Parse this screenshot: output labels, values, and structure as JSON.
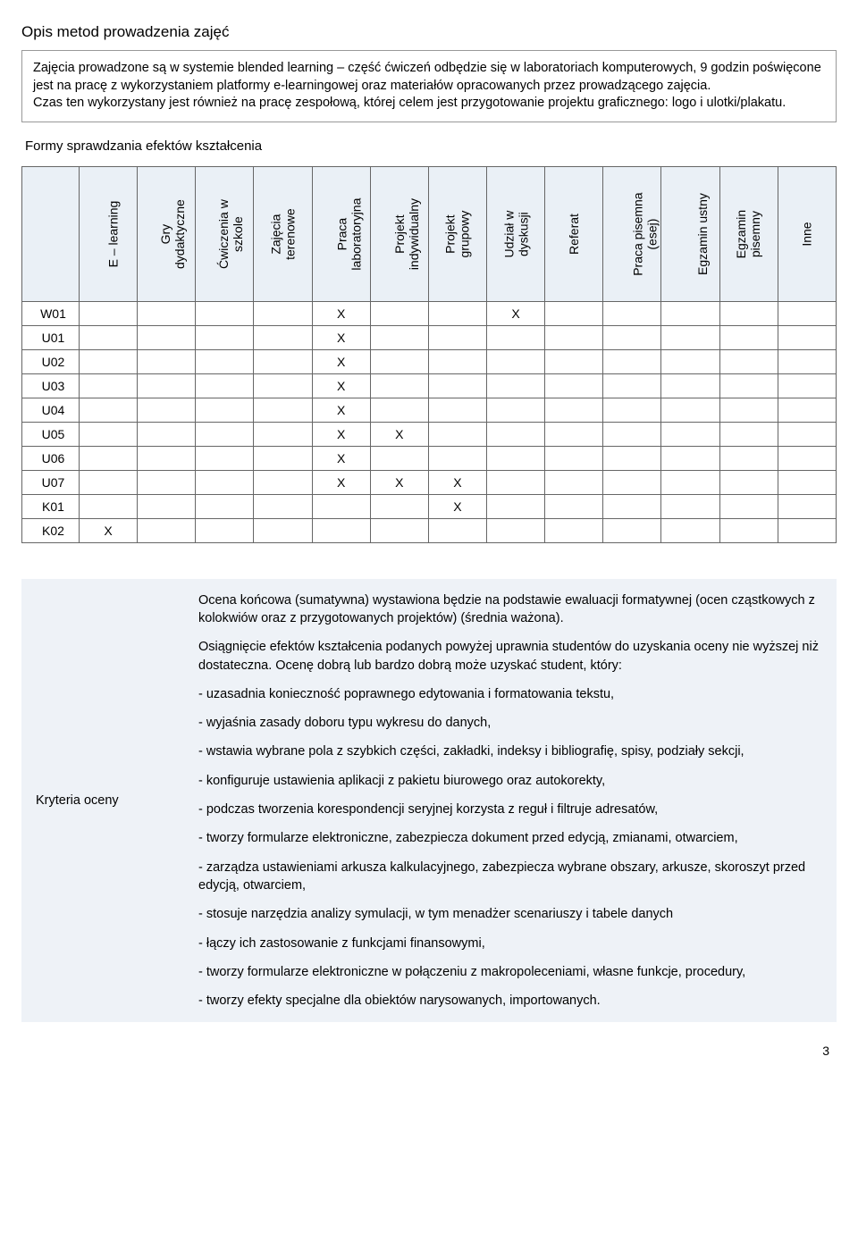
{
  "section1": {
    "title": "Opis metod prowadzenia zajęć",
    "body": "Zajęcia prowadzone są w systemie blended learning – część ćwiczeń odbędzie się w laboratoriach komputerowych, 9 godzin poświęcone jest na pracę z wykorzystaniem platformy e-learningowej oraz materiałów opracowanych przez prowadzącego zajęcia.\nCzas ten wykorzystany jest również na pracę zespołową, której celem jest przygotowanie projektu graficznego: logo i ulotki/plakatu."
  },
  "section2": {
    "title": "Formy sprawdzania efektów kształcenia",
    "columns": [
      "E – learning",
      "Gry\ndydaktyczne",
      "Ćwiczenia w\nszkole",
      "Zajęcia\nterenowe",
      "Praca\nlaboratoryjna",
      "Projekt\nindywidualny",
      "Projekt\ngrupowy",
      "Udział w\ndyskusji",
      "Referat",
      "Praca pisemna\n(esej)",
      "Egzamin ustny",
      "Egzamin\npisemny",
      "Inne"
    ],
    "rows": [
      {
        "label": "W01",
        "marks": [
          "",
          "",
          "",
          "",
          "X",
          "",
          "",
          "X",
          "",
          "",
          "",
          "",
          ""
        ]
      },
      {
        "label": "U01",
        "marks": [
          "",
          "",
          "",
          "",
          "X",
          "",
          "",
          "",
          "",
          "",
          "",
          "",
          ""
        ]
      },
      {
        "label": "U02",
        "marks": [
          "",
          "",
          "",
          "",
          "X",
          "",
          "",
          "",
          "",
          "",
          "",
          "",
          ""
        ]
      },
      {
        "label": "U03",
        "marks": [
          "",
          "",
          "",
          "",
          "X",
          "",
          "",
          "",
          "",
          "",
          "",
          "",
          ""
        ]
      },
      {
        "label": "U04",
        "marks": [
          "",
          "",
          "",
          "",
          "X",
          "",
          "",
          "",
          "",
          "",
          "",
          "",
          ""
        ]
      },
      {
        "label": "U05",
        "marks": [
          "",
          "",
          "",
          "",
          "X",
          "X",
          "",
          "",
          "",
          "",
          "",
          "",
          ""
        ]
      },
      {
        "label": "U06",
        "marks": [
          "",
          "",
          "",
          "",
          "X",
          "",
          "",
          "",
          "",
          "",
          "",
          "",
          ""
        ]
      },
      {
        "label": "U07",
        "marks": [
          "",
          "",
          "",
          "",
          "X",
          "X",
          "X",
          "",
          "",
          "",
          "",
          "",
          ""
        ]
      },
      {
        "label": "K01",
        "marks": [
          "",
          "",
          "",
          "",
          "",
          "",
          "X",
          "",
          "",
          "",
          "",
          "",
          ""
        ]
      },
      {
        "label": "K02",
        "marks": [
          "X",
          "",
          "",
          "",
          "",
          "",
          "",
          "",
          "",
          "",
          "",
          "",
          ""
        ]
      }
    ]
  },
  "criteria": {
    "label": "Kryteria oceny",
    "paragraphs": [
      "Ocena końcowa (sumatywna) wystawiona będzie na podstawie ewaluacji formatywnej (ocen cząstkowych z kolokwiów oraz z przygotowanych projektów) (średnia ważona).",
      "Osiągnięcie efektów kształcenia podanych powyżej uprawnia studentów do uzyskania oceny nie wyższej niż dostateczna. Ocenę dobrą lub bardzo dobrą może uzyskać student, który:",
      "- uzasadnia konieczność poprawnego edytowania i formatowania tekstu,",
      "- wyjaśnia zasady doboru typu wykresu do danych,",
      "- wstawia wybrane pola z szybkich części, zakładki, indeksy i bibliografię, spisy, podziały sekcji,",
      "- konfiguruje ustawienia aplikacji z pakietu biurowego oraz autokorekty,",
      "- podczas tworzenia korespondencji seryjnej korzysta z reguł i filtruje adresatów,",
      "- tworzy formularze elektroniczne, zabezpiecza dokument przed edycją, zmianami, otwarciem,",
      "- zarządza ustawieniami arkusza kalkulacyjnego, zabezpiecza wybrane obszary, arkusze, skoroszyt przed edycją, otwarciem,",
      "- stosuje narzędzia analizy symulacji, w tym menadżer scenariuszy i tabele danych",
      "- łączy ich zastosowanie z funkcjami finansowymi,",
      "- tworzy formularze elektroniczne w połączeniu z makropoleceniami, własne funkcje, procedury,",
      "- tworzy efekty specjalne dla obiektów narysowanych, importowanych."
    ]
  },
  "page_number": "3",
  "colors": {
    "header_bg": "#eaf0f6",
    "criteria_bg": "#eef2f7",
    "border": "#666666"
  }
}
